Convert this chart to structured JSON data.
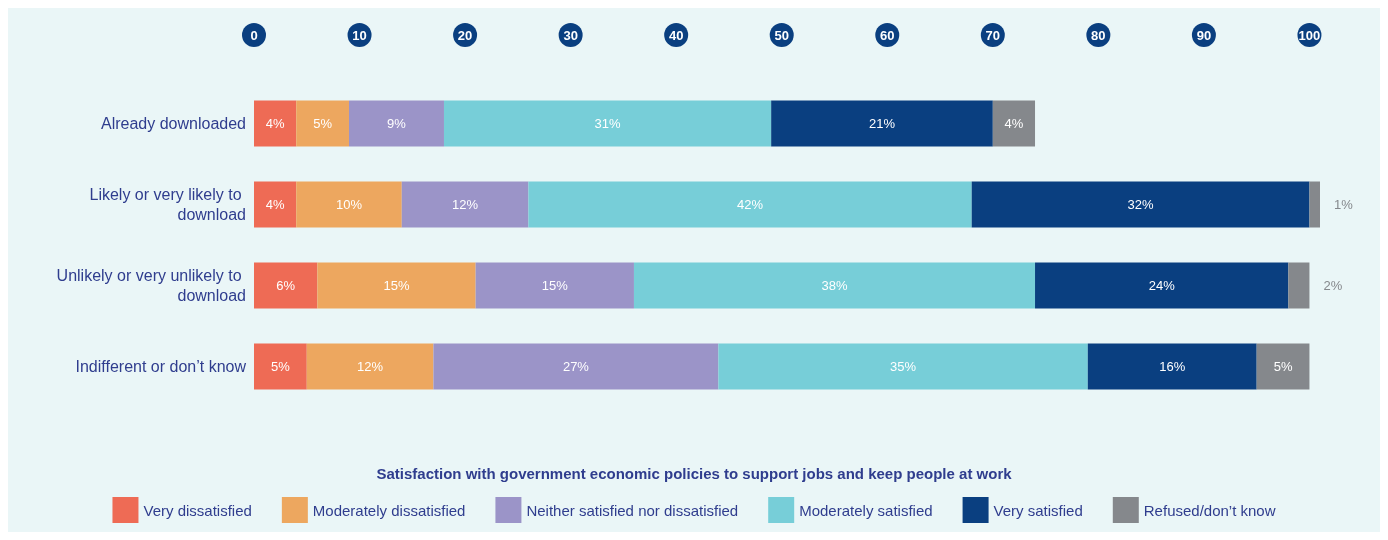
{
  "chart_data": {
    "type": "bar",
    "orientation": "horizontal",
    "stacked": true,
    "categories": [
      "Already downloaded",
      "Likely or very likely to download",
      "Unlikely or very unlikely to download",
      "Indifferent or don’t know"
    ],
    "series": [
      {
        "name": "Very dissatisfied",
        "color": "#ee6b55",
        "values": [
          4,
          4,
          6,
          5
        ],
        "value_labels": [
          "4%",
          "4%",
          "6%",
          "5%"
        ]
      },
      {
        "name": "Moderately dissatisfied",
        "color": "#eda75f",
        "values": [
          5,
          10,
          15,
          12
        ],
        "value_labels": [
          "5%",
          "10%",
          "15%",
          "12%"
        ]
      },
      {
        "name": "Neither satisfied nor dissatisfied",
        "color": "#9b94c8",
        "values": [
          9,
          12,
          15,
          27
        ],
        "value_labels": [
          "9%",
          "12%",
          "15%",
          "27%"
        ]
      },
      {
        "name": "Moderately satisfied",
        "color": "#77ced8",
        "values": [
          31,
          42,
          38,
          35
        ],
        "value_labels": [
          "31%",
          "42%",
          "38%",
          "35%"
        ]
      },
      {
        "name": "Very satisfied",
        "color": "#0a3f80",
        "values": [
          21,
          32,
          24,
          16
        ],
        "value_labels": [
          "21%",
          "32%",
          "24%",
          "16%"
        ]
      },
      {
        "name": "Refused/don’t know",
        "color": "#85888c",
        "values": [
          4,
          1,
          2,
          5
        ],
        "value_labels": [
          "4%",
          "1%",
          "2%",
          "5%"
        ]
      }
    ],
    "xlim": [
      0,
      101
    ],
    "xticks": [
      0,
      10,
      20,
      30,
      40,
      50,
      60,
      70,
      80,
      90,
      100
    ],
    "legend_title": "Satisfaction with government economic policies to support jobs and keep people at work",
    "legend": "bottom",
    "grid": false
  }
}
